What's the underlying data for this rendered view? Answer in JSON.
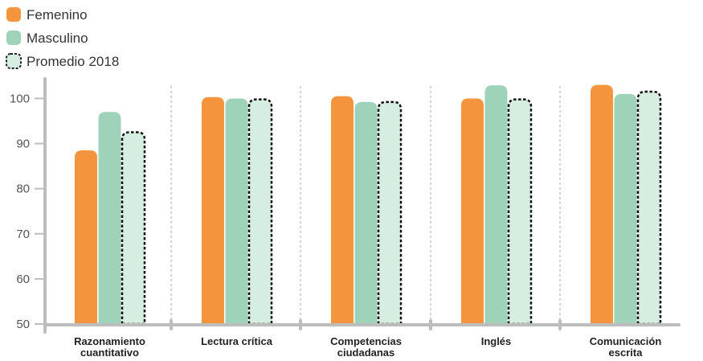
{
  "chart_data": {
    "type": "bar",
    "title": "",
    "xlabel": "",
    "ylabel": "",
    "ylim": [
      50,
      104
    ],
    "yticks": [
      50,
      60,
      70,
      80,
      90,
      100
    ],
    "categories": [
      [
        "Razonamiento",
        "cuantitativo"
      ],
      [
        "Lectura crítica"
      ],
      [
        "Competencias",
        "ciudadanas"
      ],
      [
        "Inglés"
      ],
      [
        "Comunicación",
        "escrita"
      ]
    ],
    "series": [
      {
        "name": "Femenino",
        "values": [
          88.5,
          100.3,
          100.5,
          100.0,
          103.0
        ],
        "color": "#f4943c",
        "style": "solid"
      },
      {
        "name": "Masculino",
        "values": [
          97.0,
          100.0,
          99.2,
          102.9,
          101.0
        ],
        "color": "#9fd3b9",
        "style": "solid"
      },
      {
        "name": "Promedio 2018",
        "values": [
          92.5,
          99.8,
          99.2,
          99.8,
          101.5
        ],
        "color": "#d6ede1",
        "style": "dashed"
      }
    ],
    "grid": false,
    "legend_position": "top-left"
  }
}
